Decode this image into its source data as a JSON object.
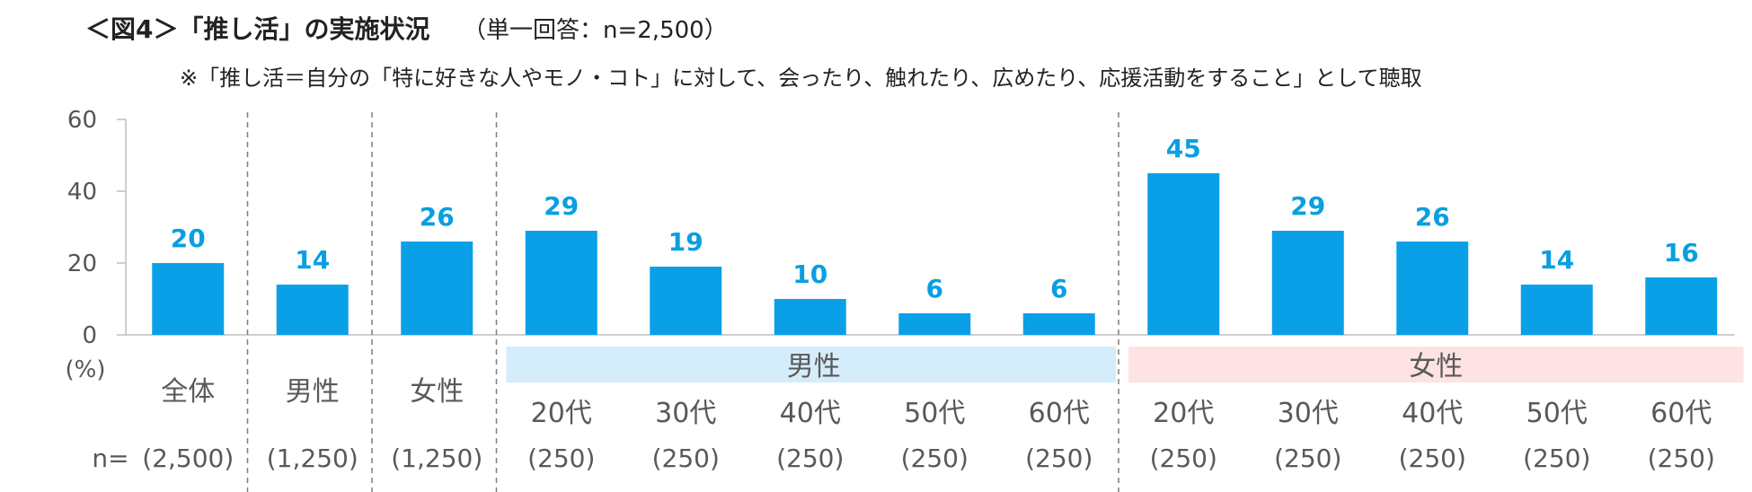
{
  "title": {
    "main": "＜図4＞「推し活」の実施状況",
    "sub": "（単一回答：n=2,500）"
  },
  "note": "※「推し活＝自分の「特に好きな人やモノ・コト」に対して、会ったり、触れたり、広めたり、応援活動をすること」として聴取",
  "colors": {
    "bar": "#0aa0e8",
    "value_text": "#0a9fe0",
    "male_band": "#d5ecfb",
    "female_band": "#fde3e3",
    "axis": "#bfbfbf",
    "divider": "#7f7f7f"
  },
  "chart_data": {
    "type": "bar",
    "unit_label": "(%)",
    "ylim": [
      0,
      60
    ],
    "yticks": [
      0,
      20,
      40,
      60
    ],
    "n_prefix": "n=",
    "categories": [
      {
        "label": "全体",
        "n": "(2,500)",
        "value": 20
      },
      {
        "label": "男性",
        "n": "(1,250)",
        "value": 14
      },
      {
        "label": "女性",
        "n": "(1,250)",
        "value": 26
      },
      {
        "label": "20代",
        "n": "(250)",
        "value": 29,
        "group": "男性"
      },
      {
        "label": "30代",
        "n": "(250)",
        "value": 19,
        "group": "男性"
      },
      {
        "label": "40代",
        "n": "(250)",
        "value": 10,
        "group": "男性"
      },
      {
        "label": "50代",
        "n": "(250)",
        "value": 6,
        "group": "男性"
      },
      {
        "label": "60代",
        "n": "(250)",
        "value": 6,
        "group": "男性"
      },
      {
        "label": "20代",
        "n": "(250)",
        "value": 45,
        "group": "女性"
      },
      {
        "label": "30代",
        "n": "(250)",
        "value": 29,
        "group": "女性"
      },
      {
        "label": "40代",
        "n": "(250)",
        "value": 26,
        "group": "女性"
      },
      {
        "label": "50代",
        "n": "(250)",
        "value": 14,
        "group": "女性"
      },
      {
        "label": "60代",
        "n": "(250)",
        "value": 16,
        "group": "女性"
      }
    ],
    "groups": [
      {
        "label": "男性",
        "kind": "male"
      },
      {
        "label": "女性",
        "kind": "female"
      }
    ]
  }
}
